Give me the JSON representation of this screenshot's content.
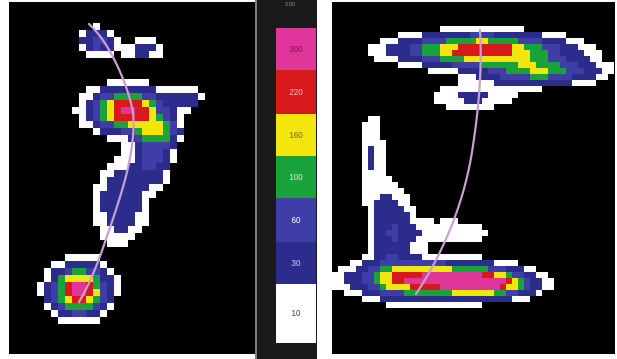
{
  "legend": {
    "levels": [
      {
        "label": "300",
        "color": "#e0359a",
        "text_color": "#7a1048"
      },
      {
        "label": "220",
        "color": "#d7191c",
        "text_color": "#f4c0c0"
      },
      {
        "label": "160",
        "color": "#f2e60c",
        "text_color": "#6b6400"
      },
      {
        "label": "100",
        "color": "#1aa33a",
        "text_color": "#d8f3dc"
      },
      {
        "label": "60",
        "color": "#3e3ea6",
        "text_color": "#ffffff"
      },
      {
        "label": "30",
        "color": "#2c2c8c",
        "text_color": "#d0d0ff"
      },
      {
        "label": "10",
        "color": "#ffffff",
        "text_color": "#333333"
      }
    ]
  },
  "top_label": "3.00",
  "colors": {
    "background": "#000000",
    "trajectory": "#c9a0d0",
    "divider": "#7d7d7d"
  }
}
